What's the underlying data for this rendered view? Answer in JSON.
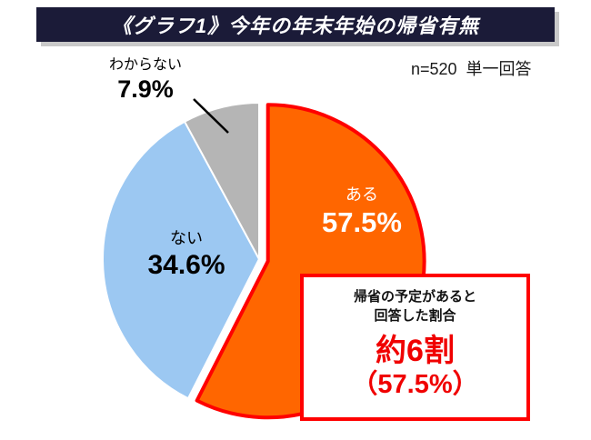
{
  "title_bar": {
    "text": "《グラフ1》今年の年末年始の帰省有無"
  },
  "sample_note": "n=520  単一回答",
  "chart_data": {
    "type": "pie",
    "title": "《グラフ1》今年の年末年始の帰省有無",
    "sample_size": 520,
    "answer_type": "単一回答",
    "start_angle_deg": 0,
    "direction": "clockwise",
    "slices": [
      {
        "key": "aru",
        "label": "ある",
        "value": 57.5,
        "display": "57.5%",
        "color": "#FF6600",
        "stroke": "#FF0000",
        "exploded": true,
        "label_color": "#FFFFFF"
      },
      {
        "key": "nai",
        "label": "ない",
        "value": 34.6,
        "display": "34.6%",
        "color": "#9CC8F2",
        "stroke": "#FFFFFF",
        "exploded": false,
        "label_color": "#000000"
      },
      {
        "key": "wakaranai",
        "label": "わからない",
        "value": 7.9,
        "display": "7.9%",
        "color": "#B5B5B5",
        "stroke": "#FFFFFF",
        "exploded": false,
        "label_color": "#000000"
      }
    ]
  },
  "annotation": {
    "line1": "帰省の予定があると",
    "line2": "回答した割合",
    "big1": "約6割",
    "big2": "（57.5%）"
  },
  "colors": {
    "title_bar_bg": "#1B1B38",
    "title_shadow": "#C9C9C9",
    "accent_red": "#FF0000",
    "background": "#FFFFFF"
  }
}
